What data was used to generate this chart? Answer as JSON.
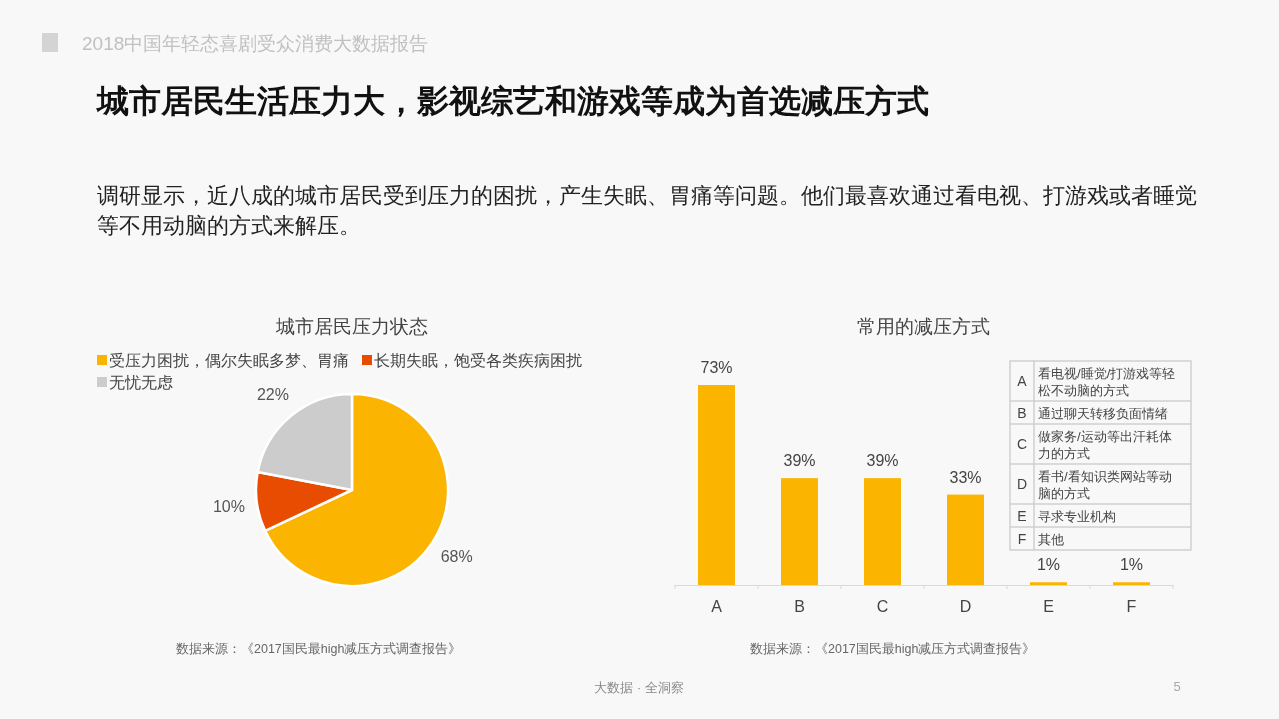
{
  "chart_data": [
    {
      "type": "other",
      "title": "城市居民生活压力大，影视综艺和游戏等成为首选减压方式",
      "subtitle": "调研显示，近八成的城市居民受到压力的困扰，产生失眠、胃痛等问题。他们最喜欢通过看电视、打游戏或者睡觉等不用动脑的方式来解压。",
      "annotations": [
        "2018中国年轻态喜剧受众消费大数据报告",
        "大数据 · 全洞察",
        "5"
      ]
    },
    {
      "type": "pie",
      "title": "城市居民压力状态",
      "categories": [
        "受压力困扰，偶尔失眠多梦、胃痛",
        "长期失眠，饱受各类疾病困扰",
        "无忧无虑"
      ],
      "values": [
        68,
        10,
        22
      ],
      "colors": [
        "#fbb400",
        "#e84c00",
        "#cccccc"
      ],
      "value_labels": [
        "68%",
        "10%",
        "22%"
      ],
      "legend": "top",
      "annotations": [
        "数据来源：《2017国民最high减压方式调查报告》"
      ]
    },
    {
      "type": "bar",
      "title": "常用的减压方式",
      "categories": [
        "A",
        "B",
        "C",
        "D",
        "E",
        "F"
      ],
      "values": [
        73,
        39,
        39,
        33,
        1,
        1
      ],
      "color": "#fbb400",
      "value_labels": [
        "73%",
        "39%",
        "39%",
        "33%",
        "1%",
        "1%"
      ],
      "annotations": [
        "A",
        "看电视/睡觉/打游戏等轻松不动脑的方式",
        "B",
        "通过聊天转移负面情绪",
        "C",
        "做家务/运动等出汗耗体力的方式",
        "D",
        "看书/看知识类网站等动脑的方式",
        "E",
        "寻求专业机构",
        "F",
        "其他",
        "数据来源：《2017国民最high减压方式调查报告》"
      ]
    }
  ]
}
